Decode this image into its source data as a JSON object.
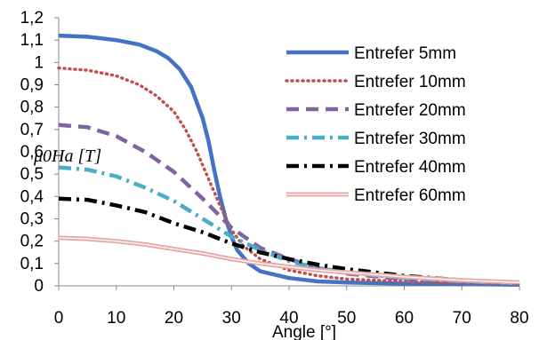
{
  "chart_data": {
    "type": "line",
    "xlabel": "Angle [°]",
    "ylabel": "μ0Ha [T]",
    "xlim": [
      0,
      80
    ],
    "ylim": [
      0,
      1.2
    ],
    "x_ticks": [
      "0",
      "10",
      "20",
      "30",
      "40",
      "50",
      "60",
      "70",
      "80"
    ],
    "y_ticks": [
      "0",
      "0,1",
      "0,2",
      "0,3",
      "0,4",
      "0,5",
      "0,6",
      "0,7",
      "0,8",
      "0,9",
      "1",
      "1,1",
      "1,2"
    ],
    "grid": false,
    "legend_position": "right",
    "series": [
      {
        "name": "Entrefer 5mm",
        "color": "#4472c4",
        "style": "solid",
        "x": [
          0,
          5,
          10,
          14,
          17,
          19,
          21,
          23,
          25,
          26,
          27,
          28,
          29,
          30,
          31,
          33,
          35,
          40,
          45,
          50,
          60,
          70,
          80
        ],
        "y": [
          1.12,
          1.115,
          1.1,
          1.08,
          1.05,
          1.02,
          0.97,
          0.89,
          0.75,
          0.65,
          0.52,
          0.4,
          0.3,
          0.22,
          0.16,
          0.1,
          0.065,
          0.035,
          0.02,
          0.015,
          0.01,
          0.008,
          0.005
        ]
      },
      {
        "name": "Entrefer 10mm",
        "color": "#c0504d",
        "style": "dotted",
        "x": [
          0,
          5,
          10,
          14,
          17,
          20,
          22,
          24,
          26,
          28,
          30,
          32,
          35,
          40,
          45,
          50,
          60,
          70,
          80
        ],
        "y": [
          0.975,
          0.965,
          0.94,
          0.9,
          0.85,
          0.78,
          0.7,
          0.6,
          0.48,
          0.36,
          0.25,
          0.18,
          0.12,
          0.07,
          0.045,
          0.03,
          0.02,
          0.012,
          0.008
        ]
      },
      {
        "name": "Entrefer 20mm",
        "color": "#8064a2",
        "style": "dashed",
        "x": [
          0,
          5,
          10,
          15,
          20,
          25,
          30,
          35,
          40,
          45,
          50,
          60,
          70,
          80
        ],
        "y": [
          0.72,
          0.71,
          0.67,
          0.6,
          0.51,
          0.39,
          0.26,
          0.17,
          0.12,
          0.08,
          0.055,
          0.03,
          0.018,
          0.01
        ]
      },
      {
        "name": "Entrefer 30mm",
        "color": "#4bacc6",
        "style": "dashdot",
        "x": [
          0,
          5,
          10,
          15,
          20,
          25,
          30,
          35,
          40,
          45,
          50,
          60,
          70,
          80
        ],
        "y": [
          0.53,
          0.52,
          0.49,
          0.44,
          0.38,
          0.3,
          0.22,
          0.16,
          0.11,
          0.08,
          0.06,
          0.035,
          0.02,
          0.012
        ]
      },
      {
        "name": "Entrefer 40mm",
        "color": "#000000",
        "style": "dashdot",
        "x": [
          0,
          5,
          10,
          15,
          20,
          25,
          30,
          35,
          40,
          45,
          50,
          60,
          70,
          80
        ],
        "y": [
          0.39,
          0.385,
          0.36,
          0.33,
          0.28,
          0.24,
          0.19,
          0.15,
          0.12,
          0.095,
          0.075,
          0.045,
          0.025,
          0.013
        ]
      },
      {
        "name": "Entrefer 60mm",
        "color": "#e6a8a6",
        "style": "double",
        "x": [
          0,
          5,
          10,
          15,
          20,
          25,
          30,
          35,
          40,
          45,
          50,
          60,
          70,
          80
        ],
        "y": [
          0.215,
          0.21,
          0.2,
          0.185,
          0.165,
          0.145,
          0.12,
          0.1,
          0.085,
          0.07,
          0.06,
          0.04,
          0.025,
          0.015
        ]
      }
    ]
  }
}
